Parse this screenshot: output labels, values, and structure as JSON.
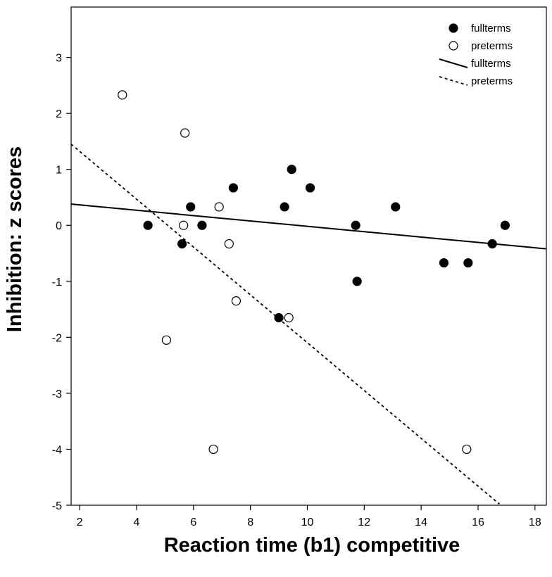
{
  "chart_data": {
    "type": "scatter",
    "title": "",
    "xlabel": "Reaction time (b1) competitive",
    "ylabel": "Inhibition: z scores",
    "xlim": [
      1.7,
      18.4
    ],
    "ylim": [
      -5,
      3.9
    ],
    "xticks": [
      2,
      4,
      6,
      8,
      10,
      12,
      14,
      16,
      18
    ],
    "yticks": [
      -5,
      -4,
      -3,
      -2,
      -1,
      0,
      1,
      2,
      3
    ],
    "grid": false,
    "legend_position": "top-right",
    "series": [
      {
        "name": "fullterms",
        "marker": "filled-circle",
        "points": [
          [
            4.4,
            0.0
          ],
          [
            5.6,
            -0.33
          ],
          [
            5.9,
            0.33
          ],
          [
            6.3,
            0.0
          ],
          [
            7.4,
            0.67
          ],
          [
            9.0,
            -1.65
          ],
          [
            9.2,
            0.33
          ],
          [
            9.45,
            1.0
          ],
          [
            10.1,
            0.67
          ],
          [
            11.7,
            0.0
          ],
          [
            11.75,
            -1.0
          ],
          [
            13.1,
            0.33
          ],
          [
            14.8,
            -0.67
          ],
          [
            15.65,
            -0.67
          ],
          [
            16.5,
            -0.33
          ],
          [
            16.95,
            0.0
          ]
        ]
      },
      {
        "name": "preterms",
        "marker": "open-circle",
        "points": [
          [
            3.5,
            2.33
          ],
          [
            5.05,
            -2.05
          ],
          [
            5.65,
            0.0
          ],
          [
            5.7,
            1.65
          ],
          [
            6.7,
            -4.0
          ],
          [
            6.9,
            0.33
          ],
          [
            7.25,
            -0.33
          ],
          [
            7.5,
            -1.35
          ],
          [
            9.35,
            -1.65
          ],
          [
            15.6,
            -4.0
          ]
        ]
      }
    ],
    "fit_lines": [
      {
        "name": "fullterms",
        "style": "solid",
        "x": [
          1.7,
          18.4
        ],
        "y": [
          0.38,
          -0.42
        ]
      },
      {
        "name": "preterms",
        "style": "dotted",
        "x": [
          1.7,
          16.75
        ],
        "y": [
          1.45,
          -4.98
        ]
      }
    ],
    "legend": [
      {
        "label": "fullterms",
        "symbol": "filled-circle"
      },
      {
        "label": "preterms",
        "symbol": "open-circle"
      },
      {
        "label": "fullterms",
        "symbol": "solid-line"
      },
      {
        "label": "preterms",
        "symbol": "dotted-line"
      }
    ],
    "colors": {
      "ink": "#000000",
      "background": "#ffffff"
    }
  }
}
